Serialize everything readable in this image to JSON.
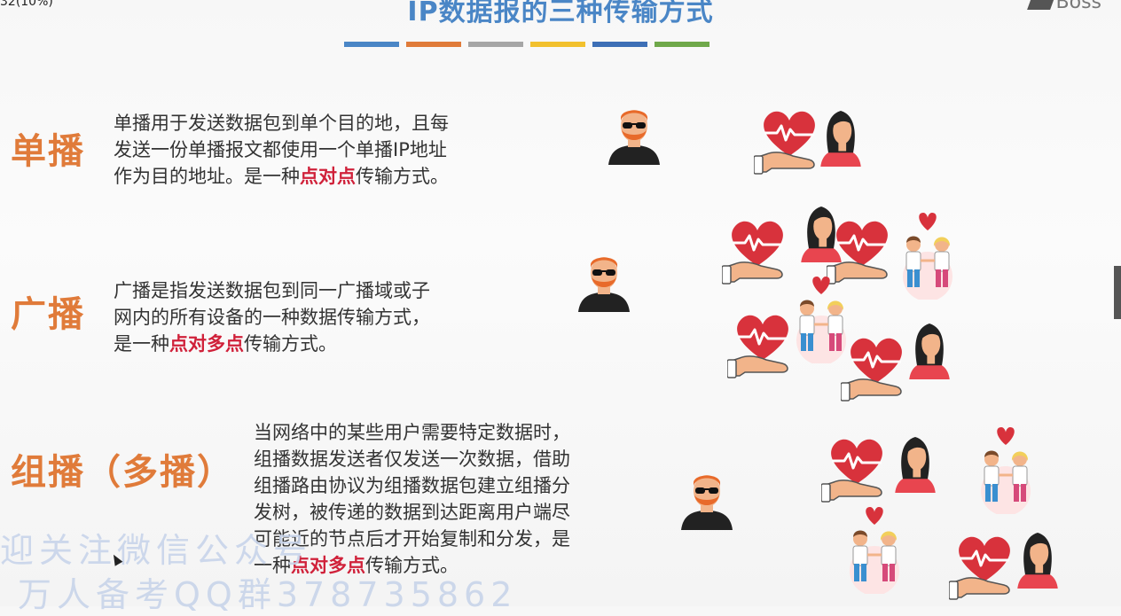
{
  "corner_text": "32(10%)",
  "logo_text": "Boss",
  "title": "IP数据报的三种传输方式",
  "title_bar_colors": [
    "#4a86c6",
    "#e07b3a",
    "#a6a6a6",
    "#f2c12e",
    "#3d6fb6",
    "#6fa84a"
  ],
  "sections": [
    {
      "label": "单播",
      "desc_lines": [
        "单播用于发送数据包到单个目的地，且每",
        "发送一份单播报文都使用一个单播IP地址"
      ],
      "desc_tail_pre": "作为目的地址。是一种",
      "desc_highlight": "点对点",
      "desc_tail_post": "传输方式。"
    },
    {
      "label": "广播",
      "desc_lines": [
        "广播是指发送数据包到同一广播域或子",
        "网内的所有设备的一种数据传输方式，"
      ],
      "desc_tail_pre": "是一种",
      "desc_highlight": "点对多点",
      "desc_tail_post": "传输方式。"
    },
    {
      "label": "组播（多播）",
      "desc_lines": [
        "当网络中的某些用户需要特定数据时，",
        "组播数据发送者仅发送一次数据，借助",
        "组播路由协议为组播数据包建立组播分",
        "发树，被传递的数据到达距离用户端尽",
        "可能近的节点后才开始复制和分发，是"
      ],
      "desc_tail_pre": "一种",
      "desc_highlight": "点对多点",
      "desc_tail_post": "传输方式。"
    }
  ],
  "watermark": {
    "line1": "迎关注微信公众号",
    "line2": "万人备考QQ群378735862"
  },
  "icons": {
    "sender": "sender-person-icon",
    "heart_hand": "heart-in-hand-icon",
    "woman": "woman-icon",
    "couple": "couple-icon"
  },
  "colors": {
    "label": "#e07b3a",
    "highlight": "#d0213a",
    "title": "#4a86c6",
    "heart": "#d8323c",
    "hair": "#e86a2a"
  }
}
